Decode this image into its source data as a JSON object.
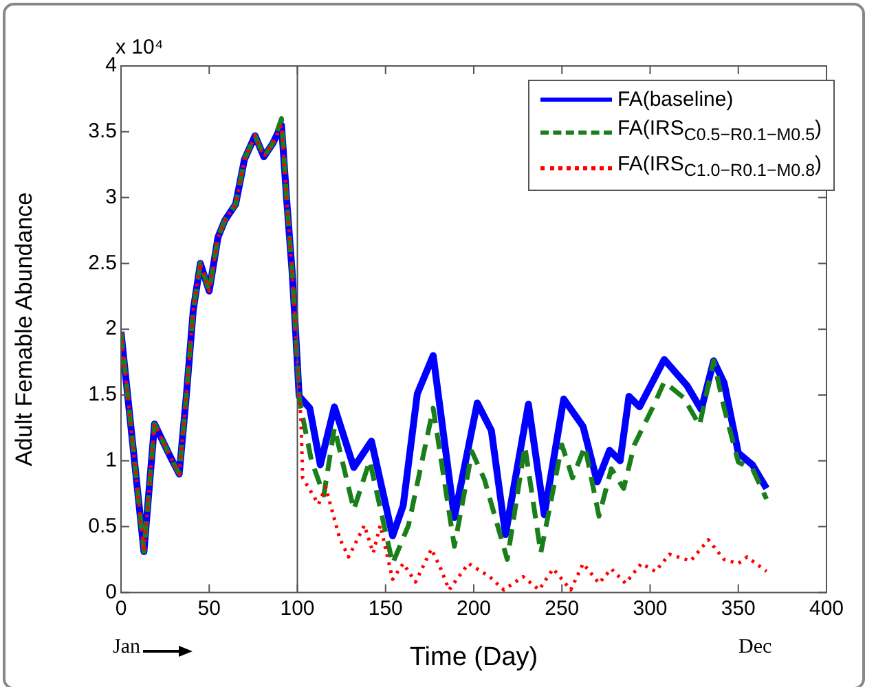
{
  "chart_data": {
    "type": "line",
    "xlabel": "Time (Day)",
    "ylabel": "Adult Femable Abundance",
    "xlim": [
      0,
      400
    ],
    "xticks": [
      0,
      50,
      100,
      150,
      200,
      250,
      300,
      350,
      400
    ],
    "ylim": [
      0,
      4
    ],
    "yticks": [
      0,
      0.5,
      1,
      1.5,
      2,
      2.5,
      3,
      3.5,
      4
    ],
    "grid": false,
    "legend": "top right",
    "marker": "none",
    "annotations": [
      "x 10⁴",
      "Jan",
      "Dec"
    ],
    "ref_lines": [
      {
        "axis": "x",
        "value": 100,
        "color": "#505050"
      }
    ],
    "series": [
      {
        "name": "FA(baseline)",
        "color": "#0000ff",
        "line_style": "solid",
        "x": [
          0,
          13,
          19,
          28,
          33,
          37,
          41,
          45,
          50,
          55,
          59,
          65,
          70,
          76,
          81,
          86,
          91,
          94,
          97,
          99,
          101,
          103,
          107,
          113,
          121,
          132,
          142,
          154,
          160,
          168,
          177,
          189,
          202,
          210,
          218,
          231,
          240,
          251,
          262,
          270,
          277,
          283,
          288,
          294,
          301,
          308,
          321,
          329,
          336,
          342,
          350,
          358,
          366
        ],
        "values": [
          1.98,
          0.31,
          1.28,
          1.03,
          0.9,
          1.49,
          2.15,
          2.5,
          2.29,
          2.7,
          2.83,
          2.95,
          3.29,
          3.47,
          3.31,
          3.41,
          3.55,
          2.97,
          2.44,
          1.98,
          1.49,
          1.46,
          1.4,
          0.97,
          1.41,
          0.95,
          1.15,
          0.43,
          0.66,
          1.51,
          1.8,
          0.57,
          1.44,
          1.23,
          0.44,
          1.43,
          0.59,
          1.47,
          1.26,
          0.84,
          1.08,
          1.0,
          1.49,
          1.41,
          1.59,
          1.77,
          1.57,
          1.39,
          1.76,
          1.59,
          1.06,
          0.97,
          0.79
        ]
      },
      {
        "name": "FA(IRS$_{C0.5−R0.1−M0.5}$)",
        "color": "#1a7f1a",
        "line_style": "dashed",
        "x": [
          0,
          13,
          19,
          28,
          33,
          37,
          41,
          45,
          50,
          55,
          59,
          65,
          70,
          76,
          81,
          86,
          91,
          94,
          97,
          99,
          101,
          102,
          108,
          115,
          121,
          132,
          141,
          154,
          163,
          177,
          189,
          199,
          206,
          219,
          229,
          238,
          250,
          256,
          263,
          271,
          278,
          285,
          291,
          302,
          308,
          319,
          328,
          336,
          342,
          350,
          358,
          366
        ],
        "values": [
          1.98,
          0.31,
          1.28,
          1.03,
          0.9,
          1.49,
          2.15,
          2.5,
          2.29,
          2.7,
          2.83,
          2.95,
          3.29,
          3.47,
          3.31,
          3.41,
          3.6,
          2.97,
          2.44,
          1.98,
          1.49,
          1.4,
          1.0,
          0.74,
          1.25,
          0.63,
          1.0,
          0.22,
          0.51,
          1.4,
          0.35,
          1.07,
          0.86,
          0.25,
          1.11,
          0.3,
          1.12,
          0.87,
          1.11,
          0.58,
          0.94,
          0.79,
          1.12,
          1.42,
          1.6,
          1.48,
          1.27,
          1.76,
          1.4,
          0.99,
          0.94,
          0.71
        ]
      },
      {
        "name": "FA(IRS$_{C1.0−R0.1−M0.8}$)",
        "color": "#ff0000",
        "line_style": "dotted",
        "x": [
          0,
          13,
          19,
          28,
          33,
          37,
          41,
          45,
          50,
          55,
          59,
          65,
          70,
          76,
          81,
          86,
          91,
          94,
          97,
          99,
          101,
          102,
          103,
          112,
          116,
          124,
          129,
          138,
          143,
          147,
          154,
          160,
          167,
          176,
          181,
          186,
          197,
          209,
          217,
          228,
          237,
          245,
          255,
          262,
          271,
          278,
          286,
          295,
          303,
          311,
          323,
          333,
          342,
          350,
          355,
          366
        ],
        "values": [
          1.98,
          0.31,
          1.28,
          1.03,
          0.9,
          1.49,
          2.15,
          2.5,
          2.29,
          2.7,
          2.83,
          2.95,
          3.29,
          3.47,
          3.31,
          3.41,
          3.55,
          2.97,
          2.44,
          1.98,
          1.49,
          1.33,
          0.87,
          0.67,
          0.8,
          0.41,
          0.27,
          0.51,
          0.3,
          0.51,
          0.1,
          0.22,
          0.08,
          0.33,
          0.19,
          0.02,
          0.22,
          0.12,
          0.02,
          0.12,
          0.02,
          0.18,
          0.02,
          0.22,
          0.07,
          0.18,
          0.07,
          0.22,
          0.16,
          0.29,
          0.24,
          0.4,
          0.25,
          0.22,
          0.27,
          0.16
        ]
      }
    ]
  }
}
